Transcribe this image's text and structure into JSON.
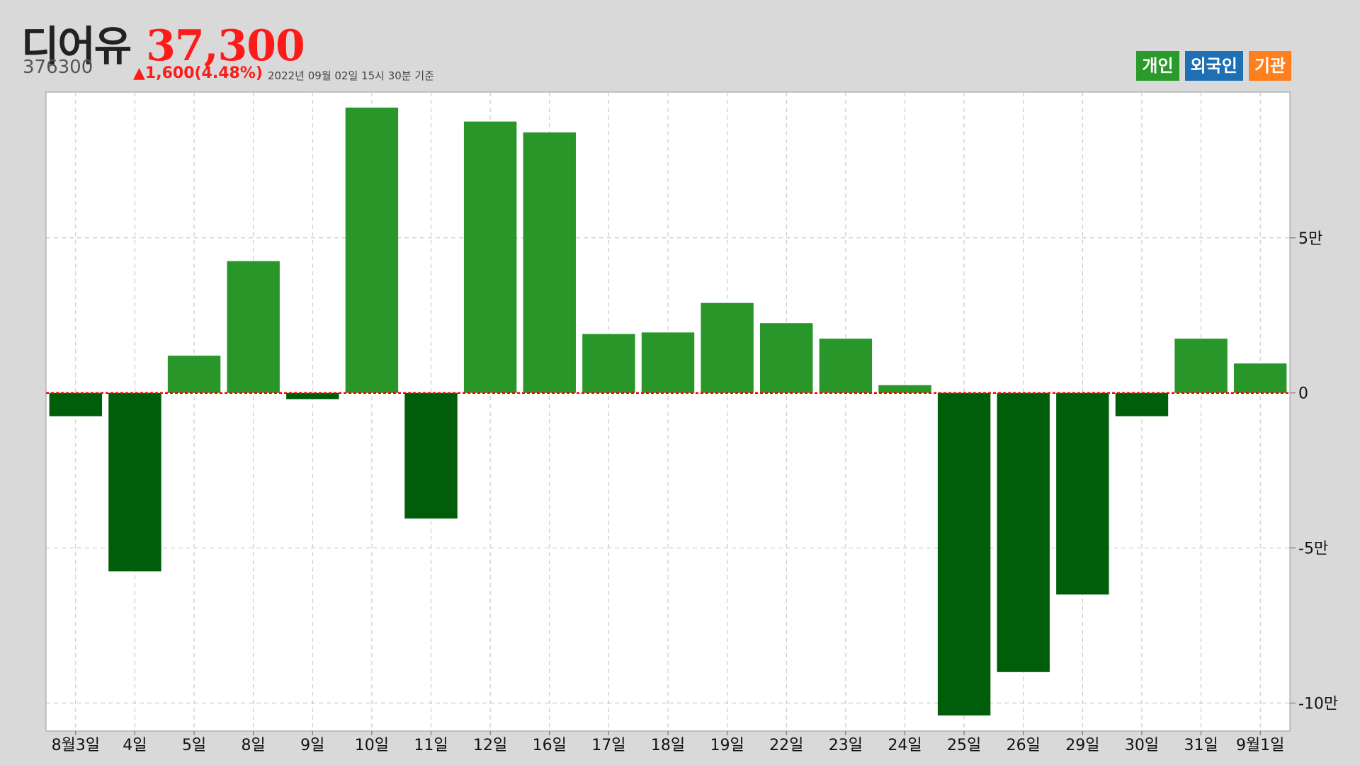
{
  "header": {
    "name": "디어유",
    "price": "37,300",
    "code": "376300",
    "change": "▲1,600(4.48%)",
    "asof": "2022년 09월 02일 15시 30분 기준"
  },
  "legend": [
    {
      "label": "개인",
      "color": "#2a9a2a"
    },
    {
      "label": "외국인",
      "color": "#1f6fb5"
    },
    {
      "label": "기관",
      "color": "#ff7f1f"
    }
  ],
  "colors": {
    "positive_bar": "#289628",
    "negative_bar": "#005e0b",
    "zero_line": "#ff0000",
    "grid": "#c0c0c0",
    "plot_bg": "#ffffff"
  },
  "chart_data": {
    "type": "bar",
    "categories": [
      "8월3일",
      "4일",
      "5일",
      "8일",
      "9일",
      "10일",
      "11일",
      "12일",
      "16일",
      "17일",
      "18일",
      "19일",
      "22일",
      "23일",
      "24일",
      "25일",
      "26일",
      "29일",
      "30일",
      "31일",
      "9월1일"
    ],
    "series": [
      {
        "values": [
          -7500,
          -57500,
          12000,
          42500,
          -2000,
          92000,
          -40500,
          87500,
          84000,
          19000,
          19500,
          29000,
          22500,
          17500,
          2500,
          -104000,
          -90000,
          -65000,
          -7500,
          17500,
          9500
        ]
      }
    ],
    "ylim": [
      -109000,
      97000
    ],
    "y_ticks": [
      {
        "value": 50000,
        "label": "5만"
      },
      {
        "value": 0,
        "label": "0"
      },
      {
        "value": -50000,
        "label": "-5만"
      },
      {
        "value": -100000,
        "label": "-10만"
      }
    ],
    "grid": true,
    "y_axis_position": "right"
  }
}
